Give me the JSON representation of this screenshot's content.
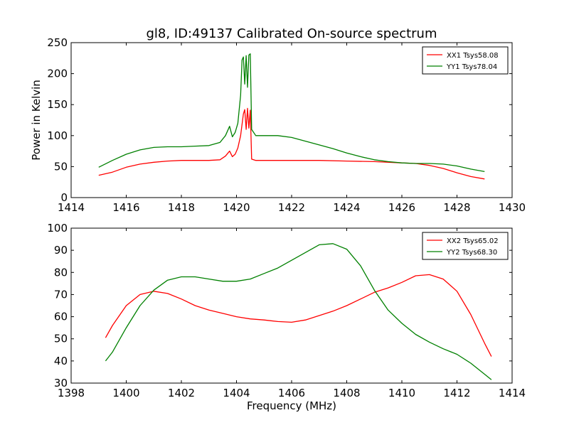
{
  "chart_data": [
    {
      "type": "line",
      "title": "gl8, ID:49137 Calibrated On-source spectrum",
      "xlabel": "",
      "ylabel": "Power in Kelvin",
      "xlim": [
        1414,
        1430
      ],
      "ylim": [
        0,
        250
      ],
      "x_ticks": [
        1414,
        1416,
        1418,
        1420,
        1422,
        1424,
        1426,
        1428,
        1430
      ],
      "y_ticks": [
        0,
        50,
        100,
        150,
        200,
        250
      ],
      "legend_position": "top-right",
      "grid": false,
      "series": [
        {
          "name": "XX1 Tsys58.08",
          "color": "#ff0000",
          "points": [
            [
              1415.0,
              36
            ],
            [
              1415.5,
              41
            ],
            [
              1416.0,
              49
            ],
            [
              1416.5,
              54
            ],
            [
              1417.0,
              57
            ],
            [
              1417.5,
              59
            ],
            [
              1418.0,
              60
            ],
            [
              1418.5,
              60
            ],
            [
              1419.0,
              60
            ],
            [
              1419.4,
              61
            ],
            [
              1419.6,
              67
            ],
            [
              1419.75,
              75
            ],
            [
              1419.85,
              66
            ],
            [
              1419.95,
              70
            ],
            [
              1420.05,
              80
            ],
            [
              1420.15,
              100
            ],
            [
              1420.25,
              135
            ],
            [
              1420.3,
              142
            ],
            [
              1420.35,
              110
            ],
            [
              1420.4,
              144
            ],
            [
              1420.45,
              112
            ],
            [
              1420.5,
              141
            ],
            [
              1420.55,
              62
            ],
            [
              1420.7,
              60
            ],
            [
              1421.0,
              60
            ],
            [
              1422.0,
              60
            ],
            [
              1423.0,
              60
            ],
            [
              1424.0,
              59
            ],
            [
              1425.0,
              58
            ],
            [
              1426.0,
              56
            ],
            [
              1426.5,
              55
            ],
            [
              1427.0,
              52
            ],
            [
              1427.5,
              47
            ],
            [
              1428.0,
              40
            ],
            [
              1428.5,
              34
            ],
            [
              1429.0,
              30
            ]
          ]
        },
        {
          "name": "YY1 Tsys78.04",
          "color": "#008000",
          "points": [
            [
              1415.0,
              49
            ],
            [
              1415.5,
              60
            ],
            [
              1416.0,
              70
            ],
            [
              1416.5,
              77
            ],
            [
              1417.0,
              81
            ],
            [
              1417.5,
              82
            ],
            [
              1418.0,
              82
            ],
            [
              1418.5,
              83
            ],
            [
              1419.0,
              84
            ],
            [
              1419.4,
              89
            ],
            [
              1419.6,
              100
            ],
            [
              1419.75,
              115
            ],
            [
              1419.85,
              98
            ],
            [
              1419.95,
              105
            ],
            [
              1420.05,
              120
            ],
            [
              1420.15,
              165
            ],
            [
              1420.2,
              222
            ],
            [
              1420.25,
              227
            ],
            [
              1420.3,
              183
            ],
            [
              1420.35,
              229
            ],
            [
              1420.4,
              178
            ],
            [
              1420.45,
              230
            ],
            [
              1420.5,
              232
            ],
            [
              1420.55,
              110
            ],
            [
              1420.7,
              100
            ],
            [
              1421.0,
              100
            ],
            [
              1421.5,
              100
            ],
            [
              1422.0,
              97
            ],
            [
              1422.5,
              91
            ],
            [
              1423.0,
              85
            ],
            [
              1423.5,
              79
            ],
            [
              1424.0,
              72
            ],
            [
              1424.5,
              66
            ],
            [
              1425.0,
              61
            ],
            [
              1425.5,
              58
            ],
            [
              1426.0,
              56
            ],
            [
              1426.5,
              55
            ],
            [
              1427.0,
              55
            ],
            [
              1427.5,
              54
            ],
            [
              1428.0,
              51
            ],
            [
              1428.5,
              46
            ],
            [
              1429.0,
              42
            ]
          ]
        }
      ]
    },
    {
      "type": "line",
      "title": "",
      "xlabel": "Frequency (MHz)",
      "ylabel": "",
      "xlim": [
        1398,
        1414
      ],
      "ylim": [
        30,
        100
      ],
      "x_ticks": [
        1398,
        1400,
        1402,
        1404,
        1406,
        1408,
        1410,
        1412,
        1414
      ],
      "y_ticks": [
        30,
        40,
        50,
        60,
        70,
        80,
        90,
        100
      ],
      "legend_position": "top-right",
      "grid": false,
      "series": [
        {
          "name": "XX2 Tsys65.02",
          "color": "#ff0000",
          "points": [
            [
              1399.25,
              50.5
            ],
            [
              1399.5,
              56
            ],
            [
              1400.0,
              65
            ],
            [
              1400.5,
              70
            ],
            [
              1401.0,
              71.5
            ],
            [
              1401.5,
              70.5
            ],
            [
              1402.0,
              68
            ],
            [
              1402.5,
              65
            ],
            [
              1403.0,
              63
            ],
            [
              1403.5,
              61.5
            ],
            [
              1404.0,
              60
            ],
            [
              1404.5,
              59
            ],
            [
              1405.0,
              58.5
            ],
            [
              1405.5,
              57.8
            ],
            [
              1406.0,
              57.5
            ],
            [
              1406.5,
              58.5
            ],
            [
              1407.0,
              60.5
            ],
            [
              1407.5,
              62.5
            ],
            [
              1408.0,
              65
            ],
            [
              1408.5,
              68
            ],
            [
              1409.0,
              71
            ],
            [
              1409.5,
              73
            ],
            [
              1410.0,
              75.5
            ],
            [
              1410.5,
              78.5
            ],
            [
              1411.0,
              79
            ],
            [
              1411.5,
              77
            ],
            [
              1412.0,
              71.5
            ],
            [
              1412.5,
              61
            ],
            [
              1413.0,
              48
            ],
            [
              1413.25,
              42
            ]
          ]
        },
        {
          "name": "YY2 Tsys68.30",
          "color": "#008000",
          "points": [
            [
              1399.25,
              40
            ],
            [
              1399.5,
              44
            ],
            [
              1400.0,
              55
            ],
            [
              1400.5,
              65
            ],
            [
              1401.0,
              72
            ],
            [
              1401.5,
              76.5
            ],
            [
              1402.0,
              78
            ],
            [
              1402.5,
              78
            ],
            [
              1403.0,
              77
            ],
            [
              1403.5,
              76
            ],
            [
              1404.0,
              76
            ],
            [
              1404.5,
              77
            ],
            [
              1405.0,
              79.5
            ],
            [
              1405.5,
              82
            ],
            [
              1406.0,
              85.5
            ],
            [
              1406.5,
              89
            ],
            [
              1407.0,
              92.5
            ],
            [
              1407.5,
              93
            ],
            [
              1408.0,
              90.5
            ],
            [
              1408.5,
              83
            ],
            [
              1409.0,
              72
            ],
            [
              1409.5,
              63
            ],
            [
              1410.0,
              57
            ],
            [
              1410.5,
              52
            ],
            [
              1411.0,
              48.5
            ],
            [
              1411.5,
              45.5
            ],
            [
              1412.0,
              43
            ],
            [
              1412.5,
              39
            ],
            [
              1413.0,
              34
            ],
            [
              1413.25,
              31.5
            ]
          ]
        }
      ]
    }
  ]
}
